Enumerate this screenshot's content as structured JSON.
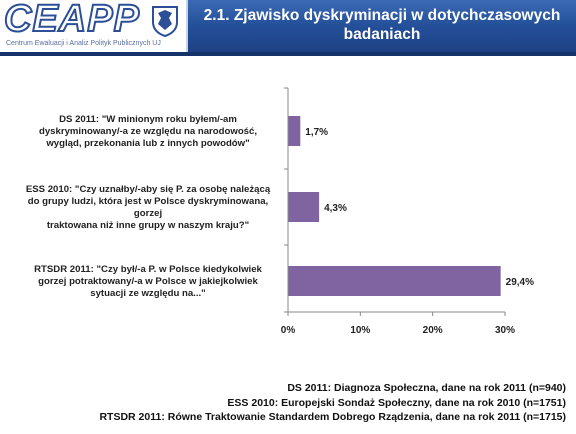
{
  "header": {
    "logo_text": "CEAPP",
    "logo_subtitle": "Centrum Ewaluacji i Analiz Polityk Publicznych UJ",
    "title_line1": "2.1. Zjawisko dyskryminacji w dotychczasowych",
    "title_line2": "badaniach"
  },
  "chart_data": {
    "type": "bar",
    "orientation": "horizontal",
    "categories": [
      "DS 2011: \"W minionym roku byłem/-am dyskryminowany/-a ze względu na narodowość, wygląd, przekonania lub z innych powodów\"",
      "ESS 2010: \"Czy uznałby/-aby się P. za osobę należącą do grupy ludzi, która jest w Polsce dyskryminowana, gorzej traktowana niż inne grupy w naszym kraju?\"",
      "RTSDR 2011: \"Czy był/-a P. w Polsce kiedykolwiek gorzej potraktowany/-a w Polsce w jakiejkolwiek sytuacji ze względu na...\""
    ],
    "category_lines": [
      [
        "DS 2011: \"W minionym roku byłem/-am",
        "dyskryminowany/-a ze względu na narodowość,",
        "wygląd, przekonania lub z innych powodów\""
      ],
      [
        "ESS 2010: \"Czy uznałby/-aby się P. za osobę należącą",
        "do grupy ludzi, która jest w Polsce dyskryminowana,",
        "gorzej",
        "traktowana niż inne grupy w naszym kraju?\""
      ],
      [
        "RTSDR 2011: \"Czy był/-a P. w Polsce kiedykolwiek",
        "gorzej potraktowany/-a w Polsce w jakiejkolwiek",
        "sytuacji ze względu na...\""
      ]
    ],
    "values": [
      1.7,
      4.3,
      29.4
    ],
    "value_labels": [
      "1,7%",
      "4,3%",
      "29,4%"
    ],
    "xlim": [
      0,
      30
    ],
    "x_ticks": [
      0,
      10,
      20,
      30
    ],
    "x_tick_labels": [
      "0%",
      "10%",
      "20%",
      "30%"
    ],
    "grid": false,
    "bar_color": "#8064a2"
  },
  "footer": {
    "line1": "DS 2011: Diagnoza Społeczna, dane na rok 2011 (n=940)",
    "line2": "ESS 2010: Europejski Sondaż Społeczny, dane na rok 2010 (n=1751)",
    "line3": "RTSDR 2011: Równe Traktowanie Standardem Dobrego Rządzenia, dane na rok 2011 (n=1715)"
  }
}
